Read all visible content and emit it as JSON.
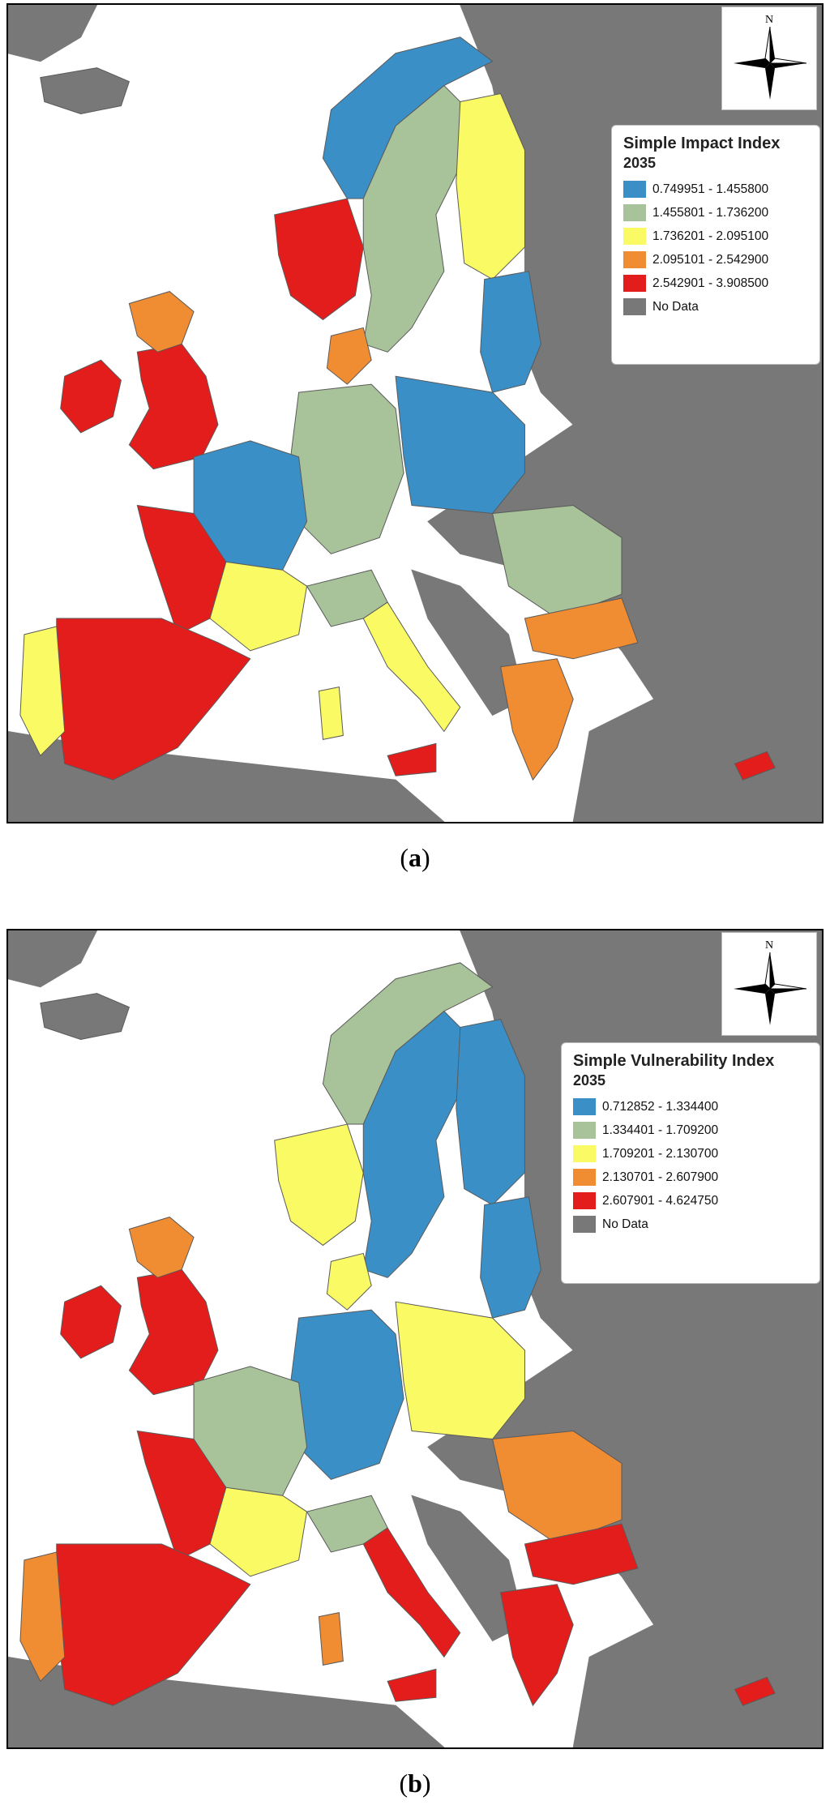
{
  "colors": {
    "sea": "#ffffff",
    "no_data_land": "#787878",
    "border": "#5a5a5a"
  },
  "maps": [
    {
      "legend": {
        "title": "Simple Impact Index",
        "year": "2035",
        "classes": [
          {
            "label": "0.749951 - 1.455800",
            "color": "#3b8fc7"
          },
          {
            "label": "1.455801 - 1.736200",
            "color": "#a8c39a"
          },
          {
            "label": "1.736201 - 2.095100",
            "color": "#fafa64"
          },
          {
            "label": "2.095101 - 2.542900",
            "color": "#f08c32"
          },
          {
            "label": "2.542901 - 3.908500",
            "color": "#e31c1c"
          },
          {
            "label": "No Data",
            "color": "#787878"
          }
        ]
      },
      "north_label": "N",
      "caption_letter": "a",
      "regions": {
        "iceland": "no_data",
        "ireland": 4,
        "uk_south": 4,
        "uk_north": 3,
        "norway_south": 4,
        "norway_north": 0,
        "sweden": 1,
        "finland": 2,
        "baltics": 0,
        "denmark": 3,
        "poland": 0,
        "germany": 1,
        "france_north": 0,
        "france_west": 4,
        "france_south": 2,
        "spain": 4,
        "portugal": 2,
        "italy_north": 1,
        "italy_south": 2,
        "sicily": 4,
        "sardinia": 2,
        "romania": 1,
        "bulgaria": 3,
        "greece": 3,
        "cyprus": 4
      }
    },
    {
      "legend": {
        "title": "Simple Vulnerability Index",
        "year": "2035",
        "classes": [
          {
            "label": "0.712852 - 1.334400",
            "color": "#3b8fc7"
          },
          {
            "label": "1.334401 - 1.709200",
            "color": "#a8c39a"
          },
          {
            "label": "1.709201 - 2.130700",
            "color": "#fafa64"
          },
          {
            "label": "2.130701 - 2.607900",
            "color": "#f08c32"
          },
          {
            "label": "2.607901 - 4.624750",
            "color": "#e31c1c"
          },
          {
            "label": "No Data",
            "color": "#787878"
          }
        ]
      },
      "north_label": "N",
      "caption_letter": "b",
      "regions": {
        "iceland": "no_data",
        "ireland": 4,
        "uk_south": 4,
        "uk_north": 3,
        "norway_south": 2,
        "norway_north": 1,
        "sweden": 0,
        "finland": 0,
        "baltics": 0,
        "denmark": 2,
        "poland": 2,
        "germany": 0,
        "france_north": 1,
        "france_west": 4,
        "france_south": 2,
        "spain": 4,
        "portugal": 3,
        "italy_north": 1,
        "italy_south": 4,
        "sicily": 4,
        "sardinia": 3,
        "romania": 3,
        "bulgaria": 4,
        "greece": 4,
        "cyprus": 4
      }
    }
  ]
}
